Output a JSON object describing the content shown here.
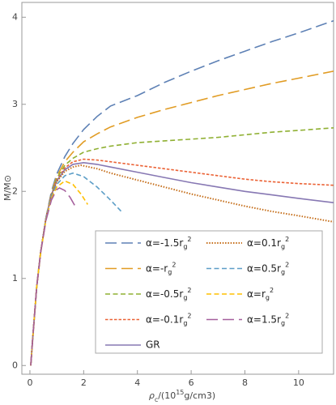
{
  "chart_data": {
    "type": "line",
    "x_label": "ρc/(1015g/cm3)",
    "y_label": "M/M⊙",
    "xlim": [
      -0.3,
      11.3
    ],
    "ylim": [
      -0.1,
      4.17
    ],
    "xticks": [
      0,
      2,
      4,
      6,
      8,
      10
    ],
    "yticks": [
      0,
      1,
      2,
      3,
      4
    ],
    "legend": "bottom-right",
    "series": [
      {
        "name": "α=-1.5rg2",
        "color": "#5e81b5",
        "style": "long-dash",
        "x": [
          0.03,
          0.1,
          0.25,
          0.4,
          0.6,
          0.8,
          1.0,
          1.3,
          1.6,
          2,
          2.5,
          3,
          4,
          5,
          6,
          7,
          8,
          9,
          10,
          11.3
        ],
        "values": [
          0,
          0.3,
          0.9,
          1.3,
          1.7,
          2.0,
          2.2,
          2.4,
          2.55,
          2.71,
          2.86,
          2.98,
          3.1,
          3.25,
          3.38,
          3.5,
          3.61,
          3.72,
          3.82,
          3.96
        ]
      },
      {
        "name": "α=-rg2",
        "color": "#e19c24",
        "style": "long-dash",
        "x": [
          0.03,
          0.1,
          0.25,
          0.4,
          0.6,
          0.8,
          1.0,
          1.3,
          1.6,
          2,
          2.5,
          3,
          4,
          5,
          6,
          7,
          8,
          9,
          10,
          11.3
        ],
        "values": [
          0,
          0.3,
          0.9,
          1.3,
          1.7,
          1.98,
          2.17,
          2.34,
          2.45,
          2.57,
          2.66,
          2.74,
          2.85,
          2.94,
          3.02,
          3.1,
          3.17,
          3.24,
          3.3,
          3.38
        ]
      },
      {
        "name": "α=-0.5rg2",
        "color": "#8fb032",
        "style": "dash",
        "x": [
          0.03,
          0.1,
          0.25,
          0.4,
          0.6,
          0.8,
          1.0,
          1.3,
          1.6,
          2,
          2.5,
          3,
          4,
          5,
          6,
          7,
          8,
          9,
          10,
          11.3
        ],
        "values": [
          0,
          0.3,
          0.9,
          1.3,
          1.7,
          1.97,
          2.15,
          2.3,
          2.38,
          2.45,
          2.49,
          2.52,
          2.56,
          2.58,
          2.6,
          2.62,
          2.65,
          2.68,
          2.7,
          2.73
        ]
      },
      {
        "name": "α=-0.1rg2",
        "color": "#eb6235",
        "style": "short-dash",
        "x": [
          0.03,
          0.1,
          0.25,
          0.4,
          0.6,
          0.8,
          1.0,
          1.3,
          1.6,
          2,
          2.5,
          3,
          4,
          5,
          6,
          7,
          8,
          9,
          10,
          11.3
        ],
        "values": [
          0,
          0.3,
          0.9,
          1.3,
          1.7,
          1.96,
          2.13,
          2.27,
          2.34,
          2.37,
          2.36,
          2.34,
          2.3,
          2.26,
          2.22,
          2.18,
          2.14,
          2.11,
          2.09,
          2.07
        ]
      },
      {
        "name": "GR",
        "color": "#8778b3",
        "style": "solid",
        "x": [
          0.03,
          0.1,
          0.25,
          0.4,
          0.6,
          0.8,
          1.0,
          1.3,
          1.6,
          2,
          2.5,
          3,
          4,
          5,
          6,
          7,
          8,
          9,
          10,
          11.3
        ],
        "values": [
          0,
          0.3,
          0.9,
          1.3,
          1.7,
          1.96,
          2.12,
          2.25,
          2.31,
          2.33,
          2.31,
          2.28,
          2.22,
          2.16,
          2.1,
          2.05,
          2.0,
          1.96,
          1.92,
          1.87
        ]
      },
      {
        "name": "α=0.1rg2",
        "color": "#c56e1a",
        "style": "dotted",
        "x": [
          0.03,
          0.1,
          0.25,
          0.4,
          0.6,
          0.8,
          1.0,
          1.3,
          1.6,
          1.9,
          2.5,
          3,
          4,
          5,
          6,
          7,
          8,
          9,
          10,
          11.3
        ],
        "values": [
          0,
          0.3,
          0.9,
          1.3,
          1.7,
          1.95,
          2.11,
          2.23,
          2.28,
          2.3,
          2.26,
          2.21,
          2.13,
          2.05,
          1.97,
          1.9,
          1.83,
          1.77,
          1.72,
          1.65
        ]
      },
      {
        "name": "α=0.5rg2",
        "color": "#5d9ec7",
        "style": "dash",
        "x": [
          0.03,
          0.1,
          0.25,
          0.4,
          0.6,
          0.8,
          1.0,
          1.3,
          1.6,
          2,
          2.5,
          3,
          3.4
        ],
        "values": [
          0,
          0.3,
          0.9,
          1.3,
          1.7,
          1.94,
          2.08,
          2.18,
          2.21,
          2.17,
          2.05,
          1.9,
          1.77
        ]
      },
      {
        "name": "α=rg2",
        "color": "#ffbf00",
        "style": "dash",
        "x": [
          0.03,
          0.1,
          0.25,
          0.4,
          0.6,
          0.8,
          1.0,
          1.3,
          1.6,
          1.9,
          2.15
        ],
        "values": [
          0,
          0.3,
          0.9,
          1.3,
          1.68,
          1.92,
          2.05,
          2.12,
          2.08,
          1.97,
          1.85
        ]
      },
      {
        "name": "α=1.5rg2",
        "color": "#a5609d",
        "style": "long-dash",
        "x": [
          0.03,
          0.1,
          0.25,
          0.4,
          0.6,
          0.8,
          1.0,
          1.1,
          1.3,
          1.5,
          1.7
        ],
        "values": [
          0,
          0.3,
          0.9,
          1.3,
          1.67,
          1.9,
          2.02,
          2.04,
          2.01,
          1.93,
          1.82
        ]
      }
    ]
  }
}
